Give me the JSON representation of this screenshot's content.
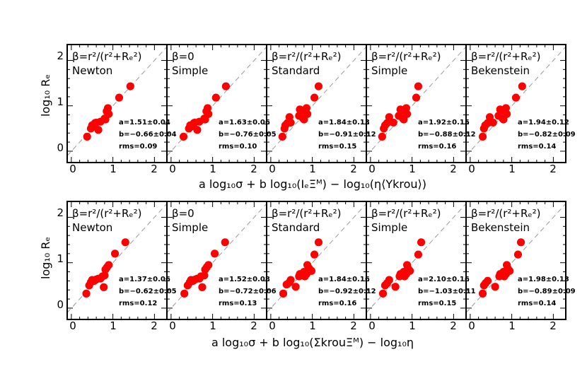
{
  "figure": {
    "rows": [
      {
        "ylabel": "log₁₀ Rₑ",
        "xlabel": "a log₁₀σ + b log₁₀(IₑΞᴹ) − log₁₀(η⟨Υkrou⟩)",
        "xticks": [
          "0",
          "1",
          "2"
        ],
        "yticks": [
          "0",
          "1",
          "2"
        ]
      },
      {
        "ylabel": "log₁₀ Rₑ",
        "xlabel": "a log₁₀σ + b log₁₀(ΣkrouΞᴹ) − log₁₀η",
        "xticks": [
          "0",
          "1",
          "2"
        ],
        "yticks": [
          "0",
          "1",
          "2"
        ]
      }
    ]
  },
  "chart_data": [
    {
      "type": "scatter",
      "row": 0,
      "col": 0,
      "title_line1": "β=r²/(r²+Rₑ²)",
      "title_line2": "Newton",
      "stats": [
        "a=1.51±0.04",
        "b=−0.66±0.04",
        "rms=0.09"
      ],
      "xlim": [
        -0.1,
        2.3
      ],
      "ylim": [
        -0.25,
        2.35
      ],
      "x": [
        0.38,
        0.47,
        0.5,
        0.55,
        0.57,
        0.6,
        0.65,
        0.7,
        0.8,
        0.82,
        0.85,
        0.88,
        0.9,
        1.15,
        1.42
      ],
      "y": [
        0.32,
        0.5,
        0.57,
        0.55,
        0.62,
        0.63,
        0.47,
        0.65,
        0.72,
        0.7,
        0.88,
        0.95,
        0.82,
        1.18,
        1.43
      ]
    },
    {
      "type": "scatter",
      "row": 0,
      "col": 1,
      "title_line1": "β=0",
      "title_line2": "Simple",
      "stats": [
        "a=1.63±0.06",
        "b=−0.76±0.05",
        "rms=0.10"
      ],
      "xlim": [
        -0.1,
        2.3
      ],
      "ylim": [
        -0.25,
        2.35
      ],
      "x": [
        0.3,
        0.43,
        0.46,
        0.5,
        0.55,
        0.57,
        0.63,
        0.68,
        0.8,
        0.82,
        0.85,
        0.88,
        0.9,
        1.08,
        1.32
      ],
      "y": [
        0.32,
        0.5,
        0.57,
        0.55,
        0.62,
        0.63,
        0.47,
        0.65,
        0.72,
        0.7,
        0.88,
        0.95,
        0.82,
        1.18,
        1.43
      ]
    },
    {
      "type": "scatter",
      "row": 0,
      "col": 2,
      "title_line1": "β=r²/(r²+Rₑ²)",
      "title_line2": "Standard",
      "stats": [
        "a=1.84±0.13",
        "b=−0.91±0.12",
        "rms=0.15"
      ],
      "xlim": [
        -0.1,
        2.3
      ],
      "ylim": [
        -0.25,
        2.35
      ],
      "x": [
        0.28,
        0.33,
        0.35,
        0.4,
        0.45,
        0.48,
        0.68,
        0.7,
        0.78,
        0.8,
        0.83,
        0.86,
        0.88,
        1.05,
        1.15
      ],
      "y": [
        0.32,
        0.5,
        0.57,
        0.62,
        0.75,
        0.63,
        0.78,
        0.92,
        0.72,
        0.7,
        0.88,
        0.95,
        0.82,
        1.18,
        1.43
      ]
    },
    {
      "type": "scatter",
      "row": 0,
      "col": 3,
      "title_line1": "β=r²/(r²+Rₑ²)",
      "title_line2": "Simple",
      "stats": [
        "a=1.92±0.15",
        "b=−0.88±0.12",
        "rms=0.16"
      ],
      "xlim": [
        -0.1,
        2.3
      ],
      "ylim": [
        -0.25,
        2.35
      ],
      "x": [
        0.28,
        0.32,
        0.35,
        0.4,
        0.45,
        0.55,
        0.68,
        0.72,
        0.78,
        0.8,
        0.83,
        0.86,
        0.88,
        1.1,
        1.15
      ],
      "y": [
        0.32,
        0.5,
        0.57,
        0.62,
        0.75,
        0.63,
        0.78,
        0.92,
        0.72,
        0.7,
        0.88,
        0.95,
        0.82,
        1.18,
        1.43
      ]
    },
    {
      "type": "scatter",
      "row": 0,
      "col": 4,
      "title_line1": "β=r²/(r²+Rₑ²)",
      "title_line2": "Bekenstein",
      "stats": [
        "a=1.94±0.12",
        "b=−0.82±0.09",
        "rms=0.14"
      ],
      "xlim": [
        -0.1,
        2.3
      ],
      "ylim": [
        -0.25,
        2.35
      ],
      "x": [
        0.3,
        0.33,
        0.36,
        0.42,
        0.47,
        0.55,
        0.68,
        0.72,
        0.78,
        0.8,
        0.83,
        0.86,
        0.88,
        1.1,
        1.25
      ],
      "y": [
        0.32,
        0.5,
        0.57,
        0.62,
        0.75,
        0.63,
        0.78,
        0.92,
        0.72,
        0.7,
        0.88,
        0.95,
        0.82,
        1.18,
        1.43
      ]
    },
    {
      "type": "scatter",
      "row": 1,
      "col": 0,
      "title_line1": "β=r²/(r²+Rₑ²)",
      "title_line2": "Newton",
      "stats": [
        "a=1.37±0.06",
        "b=−0.62±0.05",
        "rms=0.12"
      ],
      "xlim": [
        -0.1,
        2.3
      ],
      "ylim": [
        -0.25,
        2.35
      ],
      "x": [
        0.36,
        0.43,
        0.47,
        0.5,
        0.55,
        0.6,
        0.65,
        0.7,
        0.75,
        0.78,
        0.8,
        0.82,
        0.86,
        0.9,
        1.05,
        1.3
      ],
      "y": [
        0.32,
        0.5,
        0.57,
        0.62,
        0.6,
        0.63,
        0.65,
        0.65,
        0.7,
        0.46,
        0.72,
        0.85,
        0.9,
        0.95,
        1.2,
        1.45
      ]
    },
    {
      "type": "scatter",
      "row": 1,
      "col": 1,
      "title_line1": "β=0",
      "title_line2": "Simple",
      "stats": [
        "a=1.52±0.08",
        "b=−0.72±0.06",
        "rms=0.13"
      ],
      "xlim": [
        -0.1,
        2.3
      ],
      "ylim": [
        -0.25,
        2.35
      ],
      "x": [
        0.32,
        0.4,
        0.45,
        0.48,
        0.53,
        0.58,
        0.63,
        0.68,
        0.72,
        0.75,
        0.8,
        0.82,
        0.86,
        0.9,
        1.05,
        1.3
      ],
      "y": [
        0.32,
        0.5,
        0.57,
        0.62,
        0.6,
        0.63,
        0.65,
        0.65,
        0.7,
        0.46,
        0.72,
        0.85,
        0.9,
        0.95,
        1.2,
        1.45
      ]
    },
    {
      "type": "scatter",
      "row": 1,
      "col": 2,
      "title_line1": "β=r²/(r²+Rₑ²)",
      "title_line2": "Standard",
      "stats": [
        "a=1.84±0.16",
        "b=−0.92±0.12",
        "rms=0.16"
      ],
      "xlim": [
        -0.1,
        2.3
      ],
      "ylim": [
        -0.25,
        2.35
      ],
      "x": [
        0.3,
        0.38,
        0.45,
        0.48,
        0.6,
        0.68,
        0.7,
        0.75,
        0.8,
        0.82,
        0.86,
        0.88,
        0.92,
        0.98,
        1.05,
        1.15
      ],
      "y": [
        0.32,
        0.52,
        0.57,
        0.62,
        0.47,
        0.7,
        0.75,
        0.72,
        0.8,
        0.7,
        0.75,
        0.95,
        0.88,
        0.82,
        1.18,
        1.45
      ]
    },
    {
      "type": "scatter",
      "row": 1,
      "col": 3,
      "title_line1": "β=r²/(r²+Rₑ²)",
      "title_line2": "Simple",
      "stats": [
        "a=2.10±0.16",
        "b=−1.03±0.11",
        "rms=0.15"
      ],
      "xlim": [
        -0.1,
        2.3
      ],
      "ylim": [
        -0.25,
        2.35
      ],
      "x": [
        0.3,
        0.35,
        0.4,
        0.45,
        0.6,
        0.7,
        0.72,
        0.75,
        0.8,
        0.82,
        0.86,
        0.88,
        0.9,
        0.95,
        1.15,
        1.22
      ],
      "y": [
        0.32,
        0.5,
        0.55,
        0.62,
        0.47,
        0.7,
        0.75,
        0.72,
        0.8,
        0.7,
        0.75,
        0.95,
        0.88,
        0.82,
        1.18,
        1.45
      ]
    },
    {
      "type": "scatter",
      "row": 1,
      "col": 4,
      "title_line1": "β=r²/(r²+Rₑ²)",
      "title_line2": "Bekenstein",
      "stats": [
        "a=1.98±0.13",
        "b=−0.89±0.09",
        "rms=0.14"
      ],
      "xlim": [
        -0.1,
        2.3
      ],
      "ylim": [
        -0.25,
        2.35
      ],
      "x": [
        0.3,
        0.33,
        0.37,
        0.42,
        0.6,
        0.7,
        0.72,
        0.75,
        0.8,
        0.82,
        0.86,
        0.88,
        0.9,
        0.95,
        1.15,
        1.22
      ],
      "y": [
        0.32,
        0.5,
        0.55,
        0.6,
        0.47,
        0.7,
        0.75,
        0.72,
        0.8,
        0.7,
        0.75,
        0.95,
        0.88,
        0.82,
        1.18,
        1.45
      ]
    }
  ],
  "colors": {
    "point": "#ff0000",
    "axis": "#000000",
    "one_to_one": "#999999"
  }
}
